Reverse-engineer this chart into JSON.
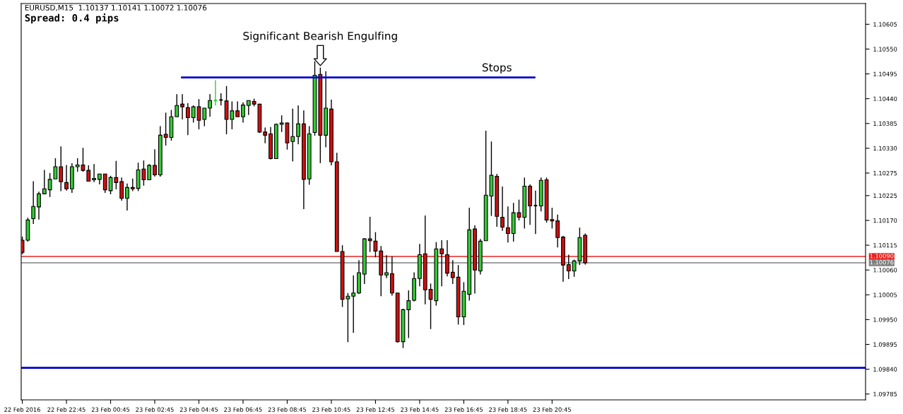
{
  "chart_data": {
    "type": "candlestick",
    "title": "EURUSD,M15  1.10137 1.10141 1.10072 1.10076",
    "subtitle": "Spread: 0.4 pips",
    "x": [
      "2016-02-22T20:45",
      "2016-02-22T21:00",
      "2016-02-22T21:15",
      "2016-02-22T21:30",
      "2016-02-22T21:45",
      "2016-02-22T22:00",
      "2016-02-22T22:15",
      "2016-02-22T22:30",
      "2016-02-22T22:45",
      "2016-02-22T23:00",
      "2016-02-22T23:15",
      "2016-02-22T23:30",
      "2016-02-22T23:45",
      "2016-02-23T00:00",
      "2016-02-23T00:15",
      "2016-02-23T00:30",
      "2016-02-23T00:45",
      "2016-02-23T01:00",
      "2016-02-23T01:15",
      "2016-02-23T01:30",
      "2016-02-23T01:45",
      "2016-02-23T02:00",
      "2016-02-23T02:15",
      "2016-02-23T02:30",
      "2016-02-23T02:45",
      "2016-02-23T03:00",
      "2016-02-23T03:15",
      "2016-02-23T03:30",
      "2016-02-23T03:45",
      "2016-02-23T04:00",
      "2016-02-23T04:15",
      "2016-02-23T04:30",
      "2016-02-23T04:45",
      "2016-02-23T05:00",
      "2016-02-23T05:15",
      "2016-02-23T05:30",
      "2016-02-23T05:45",
      "2016-02-23T06:00",
      "2016-02-23T06:15",
      "2016-02-23T06:30",
      "2016-02-23T06:45",
      "2016-02-23T07:00",
      "2016-02-23T07:15",
      "2016-02-23T07:30",
      "2016-02-23T07:45",
      "2016-02-23T08:00",
      "2016-02-23T08:15",
      "2016-02-23T08:30",
      "2016-02-23T08:45",
      "2016-02-23T09:00",
      "2016-02-23T09:15",
      "2016-02-23T09:30",
      "2016-02-23T09:45",
      "2016-02-23T10:00",
      "2016-02-23T10:15",
      "2016-02-23T10:30",
      "2016-02-23T10:45",
      "2016-02-23T11:00",
      "2016-02-23T11:15",
      "2016-02-23T11:30",
      "2016-02-23T11:45",
      "2016-02-23T12:00",
      "2016-02-23T12:15",
      "2016-02-23T12:30",
      "2016-02-23T12:45",
      "2016-02-23T13:00",
      "2016-02-23T13:15",
      "2016-02-23T13:30",
      "2016-02-23T13:45",
      "2016-02-23T14:00",
      "2016-02-23T14:15",
      "2016-02-23T14:30",
      "2016-02-23T14:45",
      "2016-02-23T15:00",
      "2016-02-23T15:15",
      "2016-02-23T15:30",
      "2016-02-23T15:45",
      "2016-02-23T16:00",
      "2016-02-23T16:15",
      "2016-02-23T16:30",
      "2016-02-23T16:45",
      "2016-02-23T17:00",
      "2016-02-23T17:15",
      "2016-02-23T17:30",
      "2016-02-23T17:45",
      "2016-02-23T18:00",
      "2016-02-23T18:15",
      "2016-02-23T18:30",
      "2016-02-23T18:45",
      "2016-02-23T19:00",
      "2016-02-23T19:15",
      "2016-02-23T19:30",
      "2016-02-23T19:45",
      "2016-02-23T20:00",
      "2016-02-23T20:15",
      "2016-02-23T20:30",
      "2016-02-23T20:45",
      "2016-02-23T21:00",
      "2016-02-23T21:15",
      "2016-02-23T21:30",
      "2016-02-23T21:45",
      "2016-02-23T22:00",
      "2016-02-23T22:15"
    ],
    "ohlc": [
      [
        1.10126,
        1.10134,
        1.10095,
        1.10099
      ],
      [
        1.10126,
        1.10176,
        1.10123,
        1.10171
      ],
      [
        1.10174,
        1.10257,
        1.10162,
        1.10201
      ],
      [
        1.102,
        1.10234,
        1.10172,
        1.10229
      ],
      [
        1.10229,
        1.10282,
        1.10229,
        1.1024
      ],
      [
        1.10238,
        1.10275,
        1.10222,
        1.10261
      ],
      [
        1.10262,
        1.10308,
        1.10262,
        1.10289
      ],
      [
        1.10289,
        1.10334,
        1.10235,
        1.10256
      ],
      [
        1.10254,
        1.10293,
        1.10236,
        1.1024
      ],
      [
        1.1024,
        1.10297,
        1.10231,
        1.10289
      ],
      [
        1.10289,
        1.10308,
        1.10278,
        1.10293
      ],
      [
        1.10293,
        1.10331,
        1.10278,
        1.10281
      ],
      [
        1.10281,
        1.10292,
        1.10257,
        1.10257
      ],
      [
        1.1026,
        1.10295,
        1.10255,
        1.10263
      ],
      [
        1.10261,
        1.10273,
        1.1025,
        1.10273
      ],
      [
        1.10273,
        1.10273,
        1.10231,
        1.10238
      ],
      [
        1.10236,
        1.10269,
        1.10228,
        1.10265
      ],
      [
        1.10265,
        1.10302,
        1.10239,
        1.10254
      ],
      [
        1.10256,
        1.10265,
        1.10214,
        1.10219
      ],
      [
        1.10219,
        1.10252,
        1.10192,
        1.10243
      ],
      [
        1.10243,
        1.10263,
        1.10235,
        1.1024
      ],
      [
        1.10241,
        1.10298,
        1.10235,
        1.10282
      ],
      [
        1.10284,
        1.10303,
        1.10247,
        1.1026
      ],
      [
        1.1026,
        1.10295,
        1.1026,
        1.10292
      ],
      [
        1.10292,
        1.10328,
        1.10267,
        1.10271
      ],
      [
        1.10271,
        1.10379,
        1.10267,
        1.10359
      ],
      [
        1.10361,
        1.10409,
        1.10336,
        1.10354
      ],
      [
        1.10354,
        1.10415,
        1.10347,
        1.104
      ],
      [
        1.104,
        1.1045,
        1.104,
        1.10425
      ],
      [
        1.10428,
        1.1045,
        1.10394,
        1.10422
      ],
      [
        1.1042,
        1.1043,
        1.10359,
        1.10398
      ],
      [
        1.10398,
        1.10425,
        1.10387,
        1.10422
      ],
      [
        1.10422,
        1.10439,
        1.10372,
        1.10392
      ],
      [
        1.10394,
        1.10419,
        1.10379,
        1.10419
      ],
      [
        1.10419,
        1.1045,
        1.104,
        1.10436
      ],
      [
        1.10436,
        1.10481,
        1.10425,
        1.10436
      ],
      [
        1.10437,
        1.10452,
        1.10425,
        1.10437
      ],
      [
        1.10435,
        1.10468,
        1.10361,
        1.10394
      ],
      [
        1.10394,
        1.10434,
        1.10372,
        1.10413
      ],
      [
        1.10413,
        1.10434,
        1.104,
        1.104
      ],
      [
        1.104,
        1.10432,
        1.10387,
        1.10426
      ],
      [
        1.10425,
        1.10436,
        1.10404,
        1.10436
      ],
      [
        1.10434,
        1.1044,
        1.10423,
        1.10428
      ],
      [
        1.10428,
        1.10428,
        1.10364,
        1.10366
      ],
      [
        1.10366,
        1.10376,
        1.10341,
        1.10359
      ],
      [
        1.10362,
        1.10377,
        1.10305,
        1.10307
      ],
      [
        1.10307,
        1.10385,
        1.10307,
        1.10383
      ],
      [
        1.10383,
        1.10403,
        1.10366,
        1.10386
      ],
      [
        1.10386,
        1.10387,
        1.10327,
        1.10342
      ],
      [
        1.10345,
        1.10418,
        1.10301,
        1.10356
      ],
      [
        1.10356,
        1.10425,
        1.10339,
        1.10384
      ],
      [
        1.10384,
        1.10414,
        1.10195,
        1.10261
      ],
      [
        1.10262,
        1.10379,
        1.10249,
        1.10362
      ],
      [
        1.10365,
        1.10523,
        1.10358,
        1.10492
      ],
      [
        1.10494,
        1.10509,
        1.10297,
        1.10359
      ],
      [
        1.10359,
        1.10501,
        1.10332,
        1.10419
      ],
      [
        1.10417,
        1.10438,
        1.10292,
        1.103
      ],
      [
        1.103,
        1.1032,
        1.10101,
        1.10101
      ],
      [
        1.10101,
        1.10115,
        1.09978,
        1.09995
      ],
      [
        1.09996,
        1.10009,
        1.099,
        1.10002
      ],
      [
        1.10002,
        1.10048,
        1.09921,
        1.10009
      ],
      [
        1.10009,
        1.10082,
        1.10007,
        1.10054
      ],
      [
        1.10051,
        1.10131,
        1.10029,
        1.10129
      ],
      [
        1.10129,
        1.10178,
        1.101,
        1.10125
      ],
      [
        1.10124,
        1.10144,
        1.10088,
        1.10102
      ],
      [
        1.10102,
        1.10113,
        1.10002,
        1.10049
      ],
      [
        1.10049,
        1.10093,
        1.10042,
        1.10054
      ],
      [
        1.10052,
        1.1009,
        1.10003,
        1.10009
      ],
      [
        1.10009,
        1.10009,
        1.09899,
        1.09901
      ],
      [
        1.09901,
        1.09974,
        1.09887,
        1.09972
      ],
      [
        1.09972,
        1.10015,
        1.09909,
        1.09992
      ],
      [
        1.09993,
        1.10055,
        1.0999,
        1.10041
      ],
      [
        1.10041,
        1.10118,
        1.10024,
        1.10094
      ],
      [
        1.10096,
        1.10181,
        1.09984,
        1.10016
      ],
      [
        1.10017,
        1.1003,
        1.09929,
        1.09995
      ],
      [
        1.09992,
        1.10122,
        1.09981,
        1.10107
      ],
      [
        1.10107,
        1.10126,
        1.10024,
        1.10096
      ],
      [
        1.10094,
        1.10126,
        1.10046,
        1.10053
      ],
      [
        1.10055,
        1.10082,
        1.10029,
        1.10043
      ],
      [
        1.10044,
        1.10071,
        1.09939,
        1.09956
      ],
      [
        1.09956,
        1.10033,
        1.09938,
        1.10013
      ],
      [
        1.10006,
        1.10198,
        1.09992,
        1.10149
      ],
      [
        1.10151,
        1.10159,
        1.10008,
        1.1006
      ],
      [
        1.10058,
        1.10129,
        1.1005,
        1.10124
      ],
      [
        1.10125,
        1.10369,
        1.10125,
        1.10226
      ],
      [
        1.10224,
        1.10345,
        1.1018,
        1.1027
      ],
      [
        1.10268,
        1.10273,
        1.10156,
        1.10179
      ],
      [
        1.10177,
        1.10245,
        1.10147,
        1.10155
      ],
      [
        1.10154,
        1.10201,
        1.10121,
        1.10141
      ],
      [
        1.10141,
        1.10209,
        1.10123,
        1.10187
      ],
      [
        1.10187,
        1.10216,
        1.1017,
        1.10177
      ],
      [
        1.10177,
        1.10265,
        1.10152,
        1.10246
      ],
      [
        1.10246,
        1.1025,
        1.1016,
        1.10202
      ],
      [
        1.10203,
        1.10236,
        1.1014,
        1.10203
      ],
      [
        1.10202,
        1.10265,
        1.1019,
        1.10259
      ],
      [
        1.1026,
        1.10265,
        1.10165,
        1.10171
      ],
      [
        1.10172,
        1.10198,
        1.10152,
        1.10169
      ],
      [
        1.10169,
        1.10183,
        1.1011,
        1.10132
      ],
      [
        1.10133,
        1.10136,
        1.10034,
        1.10071
      ],
      [
        1.10072,
        1.10094,
        1.1004,
        1.10058
      ],
      [
        1.10058,
        1.10083,
        1.10045,
        1.1008
      ],
      [
        1.1008,
        1.10154,
        1.10071,
        1.10132
      ],
      [
        1.10137,
        1.10141,
        1.10072,
        1.10076
      ]
    ],
    "colors": [
      "#d01010",
      "#33cc33",
      "#33cc33",
      "#33cc33",
      "#33cc33",
      "#33cc33",
      "#33cc33",
      "#d01010",
      "#d01010",
      "#33cc33",
      "#33cc33",
      "#d01010",
      "#d01010",
      "#33cc33",
      "#33cc33",
      "#d01010",
      "#33cc33",
      "#d01010",
      "#d01010",
      "#33cc33",
      "#d01010",
      "#33cc33",
      "#d01010",
      "#33cc33",
      "#d01010",
      "#33cc33",
      "#d01010",
      "#33cc33",
      "#33cc33",
      "#d01010",
      "#d01010",
      "#33cc33",
      "#d01010",
      "#33cc33",
      "#33cc33",
      "#33cc33",
      "#000000",
      "#d01010",
      "#33cc33",
      "#d01010",
      "#33cc33",
      "#33cc33",
      "#d01010",
      "#d01010",
      "#d01010",
      "#d01010",
      "#33cc33",
      "#33cc33",
      "#d01010",
      "#33cc33",
      "#33cc33",
      "#d01010",
      "#33cc33",
      "#33cc33",
      "#d01010",
      "#33cc33",
      "#d01010",
      "#d01010",
      "#d01010",
      "#33cc33",
      "#33cc33",
      "#33cc33",
      "#33cc33",
      "#d01010",
      "#d01010",
      "#d01010",
      "#33cc33",
      "#d01010",
      "#d01010",
      "#33cc33",
      "#33cc33",
      "#33cc33",
      "#33cc33",
      "#d01010",
      "#d01010",
      "#33cc33",
      "#d01010",
      "#d01010",
      "#d01010",
      "#d01010",
      "#33cc33",
      "#33cc33",
      "#d01010",
      "#33cc33",
      "#33cc33",
      "#33cc33",
      "#d01010",
      "#d01010",
      "#d01010",
      "#33cc33",
      "#d01010",
      "#33cc33",
      "#d01010",
      "#000000",
      "#33cc33",
      "#d01010",
      "#d01010",
      "#d01010",
      "#d01010",
      "#d01010",
      "#33cc33",
      "#33cc33",
      "#d01010"
    ],
    "series": [
      {
        "type": "line",
        "x": [
          "2016-02-23T03:59",
          "2016-02-23T19:57"
        ],
        "values": [
          1.10487,
          1.10487
        ],
        "color": "#0000cc"
      }
    ],
    "ref_lines": [
      {
        "axis": "y",
        "value": 1.1009,
        "label": "1.10090",
        "color": "#e8231f"
      },
      {
        "axis": "y",
        "value": 1.10076,
        "label": "1.10076",
        "color": "#808080"
      },
      {
        "axis": "y",
        "value": 1.09843,
        "color": "#0000cc"
      }
    ],
    "annotations": [
      {
        "text": "Significant Bearish Engulfing",
        "x": "2016-02-23T10:15",
        "y": 1.10509
      },
      {
        "text": "Stops",
        "x": "2016-02-23T18:15",
        "y": 1.10487
      }
    ],
    "xlim": [
      "2016-02-22T20:42",
      "2016-02-24T10:57"
    ],
    "xticks": [
      {
        "value": "2016-02-22T20:45",
        "label": "22 Feb 2016"
      },
      {
        "value": "2016-02-22T22:45",
        "label": "22 Feb 22:45"
      },
      {
        "value": "2016-02-23T00:45",
        "label": "23 Feb 00:45"
      },
      {
        "value": "2016-02-23T02:45",
        "label": "23 Feb 02:45"
      },
      {
        "value": "2016-02-23T04:45",
        "label": "23 Feb 04:45"
      },
      {
        "value": "2016-02-23T06:45",
        "label": "23 Feb 06:45"
      },
      {
        "value": "2016-02-23T08:45",
        "label": "23 Feb 08:45"
      },
      {
        "value": "2016-02-23T10:45",
        "label": "23 Feb 10:45"
      },
      {
        "value": "2016-02-23T12:45",
        "label": "23 Feb 12:45"
      },
      {
        "value": "2016-02-23T14:45",
        "label": "23 Feb 14:45"
      },
      {
        "value": "2016-02-23T16:45",
        "label": "23 Feb 16:45"
      },
      {
        "value": "2016-02-23T18:45",
        "label": "23 Feb 18:45"
      },
      {
        "value": "2016-02-23T20:45",
        "label": "23 Feb 20:45"
      }
    ],
    "ylim": [
      1.09772,
      1.10651
    ],
    "yticks": [
      {
        "value": 1.09785,
        "label": "1.09785"
      },
      {
        "value": 1.0984,
        "label": "1.09840"
      },
      {
        "value": 1.09895,
        "label": "1.09895"
      },
      {
        "value": 1.0995,
        "label": "1.09950"
      },
      {
        "value": 1.10005,
        "label": "1.10005"
      },
      {
        "value": 1.1006,
        "label": "1.10060"
      },
      {
        "value": 1.10115,
        "label": "1.10115"
      },
      {
        "value": 1.1017,
        "label": "1.10170"
      },
      {
        "value": 1.10225,
        "label": "1.10225"
      },
      {
        "value": 1.10275,
        "label": "1.10275"
      },
      {
        "value": 1.1033,
        "label": "1.10330"
      },
      {
        "value": 1.10385,
        "label": "1.10385"
      },
      {
        "value": 1.1044,
        "label": "1.10440"
      },
      {
        "value": 1.10495,
        "label": "1.10495"
      },
      {
        "value": 1.1055,
        "label": "1.10550"
      },
      {
        "value": 1.10605,
        "label": "1.10605"
      }
    ],
    "grid": false,
    "legend": false
  }
}
